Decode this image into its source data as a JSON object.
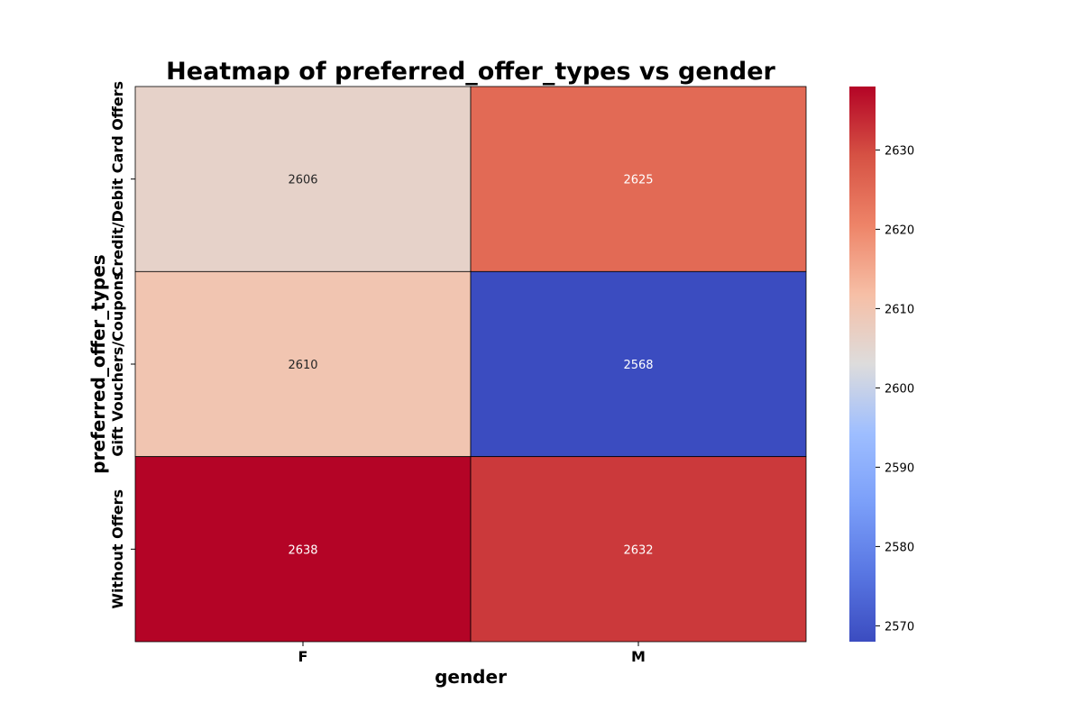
{
  "chart_data": {
    "type": "heatmap",
    "title": "Heatmap of preferred_offer_types vs gender",
    "xlabel": "gender",
    "ylabel": "preferred_offer_types",
    "x_categories": [
      "F",
      "M"
    ],
    "y_categories": [
      "Credit/Debit Card Offers",
      "Gift Vouchers/Coupons",
      "Without Offers"
    ],
    "values": [
      [
        2606,
        2625
      ],
      [
        2610,
        2568
      ],
      [
        2638,
        2632
      ]
    ],
    "colormap": "coolwarm",
    "color_range": [
      2568,
      2638
    ],
    "colorbar_ticks": [
      2570,
      2580,
      2590,
      2600,
      2610,
      2620,
      2630
    ],
    "colorbar_tick_labels": [
      "2570",
      "2580",
      "2590",
      "2600",
      "2610",
      "2620",
      "2630"
    ],
    "grid": true
  }
}
